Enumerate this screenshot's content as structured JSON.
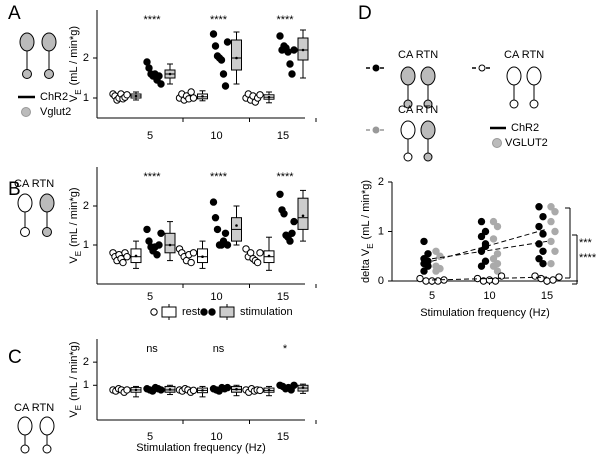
{
  "chart_data": [
    {
      "type": "box",
      "panel": "A",
      "categories": [
        "5",
        "10",
        "15"
      ],
      "ylim": [
        0.5,
        3.2
      ],
      "yticks": [
        1,
        2
      ],
      "y_label": {
        "main": "V",
        "sub": "E",
        "unit": "(mL / min*g)"
      },
      "significance": [
        "****",
        "****",
        "****"
      ],
      "schematic_labels": [
        "ChR2",
        "Vglut2"
      ],
      "series": [
        {
          "color": "#ffffff",
          "box_color": "#ffffff",
          "points": [
            [
              1.1,
              1.05,
              0.95,
              1.0,
              1.1,
              0.98,
              1.02,
              1.08
            ],
            [
              1.0,
              1.1,
              0.95,
              1.05,
              0.98,
              1.15,
              1.0
            ],
            [
              1.0,
              1.1,
              0.95,
              1.05,
              0.9,
              1.0,
              1.08
            ]
          ],
          "box": [
            [
              0.95,
              1.0,
              1.05,
              1.1,
              1.15,
              1.05
            ],
            [
              0.93,
              0.98,
              1.03,
              1.1,
              1.18,
              1.04
            ],
            [
              0.88,
              0.97,
              1.02,
              1.08,
              1.15,
              1.02
            ]
          ]
        },
        {
          "color": "#000000",
          "box_color": "#cccccc",
          "points": [
            [
              1.9,
              1.75,
              1.6,
              1.55,
              1.6,
              1.45,
              1.55,
              1.35
            ],
            [
              2.6,
              2.3,
              2.05,
              2.0,
              1.95,
              1.6,
              1.3,
              2.4
            ],
            [
              2.55,
              2.2,
              2.3,
              2.25,
              2.15,
              1.85,
              1.6,
              2.2
            ]
          ],
          "box": [
            [
              1.35,
              1.5,
              1.6,
              1.7,
              1.85,
              1.6
            ],
            [
              1.35,
              1.7,
              2.0,
              2.45,
              2.65,
              2.0
            ],
            [
              1.5,
              1.95,
              2.2,
              2.5,
              2.7,
              2.2
            ]
          ]
        }
      ]
    },
    {
      "type": "box",
      "panel": "B",
      "categories": [
        "5",
        "10",
        "15"
      ],
      "ylim": [
        0,
        3
      ],
      "yticks": [
        1,
        2
      ],
      "y_label": {
        "main": "V",
        "sub": "E",
        "unit": "(mL / min*g)"
      },
      "significance": [
        "****",
        "****",
        "****"
      ],
      "schematic_labels": [
        "CA RTN"
      ],
      "series": [
        {
          "name": "rest",
          "color": "#ffffff",
          "box_color": "#ffffff",
          "points": [
            [
              0.8,
              0.7,
              0.6,
              0.75,
              0.65,
              0.55,
              0.8,
              0.7
            ],
            [
              0.9,
              0.8,
              0.7,
              0.6,
              0.75,
              0.55,
              0.8
            ],
            [
              0.9,
              0.7,
              0.8,
              0.65,
              0.6,
              0.55,
              0.8
            ]
          ],
          "box": [
            [
              0.4,
              0.55,
              0.7,
              0.9,
              1.1,
              0.72
            ],
            [
              0.4,
              0.55,
              0.7,
              0.9,
              1.1,
              0.7
            ],
            [
              0.35,
              0.55,
              0.7,
              0.85,
              1.2,
              0.72
            ]
          ]
        },
        {
          "name": "stimulation",
          "color": "#000000",
          "box_color": "#cccccc",
          "points": [
            [
              1.4,
              1.1,
              0.95,
              0.85,
              0.95,
              0.75,
              1.0,
              1.3
            ],
            [
              2.1,
              1.7,
              1.4,
              1.0,
              1.0,
              1.1,
              1.3,
              1.0
            ],
            [
              2.3,
              1.9,
              1.8,
              1.25,
              1.2,
              1.1,
              1.3,
              1.6
            ]
          ],
          "box": [
            [
              0.6,
              0.8,
              1.0,
              1.3,
              1.6,
              1.0
            ],
            [
              1.0,
              1.1,
              1.4,
              1.7,
              2.0,
              1.5
            ],
            [
              1.1,
              1.4,
              1.7,
              2.2,
              2.4,
              1.75
            ]
          ]
        }
      ]
    },
    {
      "type": "box",
      "panel": "C",
      "categories": [
        "5",
        "10",
        "15"
      ],
      "ylim": [
        -0.5,
        3
      ],
      "yticks": [
        1,
        2
      ],
      "y_label": {
        "main": "V",
        "sub": "E",
        "unit": "(mL / min*g)"
      },
      "x_label": "Stimulation frequency (Hz)",
      "significance": [
        "ns",
        "ns",
        "*"
      ],
      "schematic_labels": [
        "CA RTN"
      ],
      "series": [
        {
          "color": "#ffffff",
          "box_color": "#ffffff",
          "points": [
            [
              0.8,
              0.75,
              0.85,
              0.8,
              0.7,
              0.8
            ],
            [
              0.8,
              0.75,
              0.85,
              0.8,
              0.7,
              0.78
            ],
            [
              0.8,
              0.7,
              0.85,
              0.75,
              0.8,
              0.78
            ]
          ],
          "box": [
            [
              0.5,
              0.7,
              0.8,
              0.9,
              0.95,
              0.8
            ],
            [
              0.5,
              0.68,
              0.78,
              0.88,
              0.95,
              0.78
            ],
            [
              0.55,
              0.7,
              0.78,
              0.88,
              0.95,
              0.79
            ]
          ]
        },
        {
          "color": "#000000",
          "box_color": "#cccccc",
          "points": [
            [
              0.85,
              0.8,
              0.75,
              0.9,
              0.85,
              0.8
            ],
            [
              0.85,
              0.8,
              0.75,
              0.9,
              0.85,
              0.9
            ],
            [
              1.0,
              0.95,
              0.85,
              0.9,
              0.8,
              1.0
            ]
          ],
          "box": [
            [
              0.6,
              0.7,
              0.8,
              0.95,
              1.0,
              0.82
            ],
            [
              0.55,
              0.7,
              0.82,
              0.95,
              1.0,
              0.83
            ],
            [
              0.65,
              0.75,
              0.88,
              1.0,
              1.05,
              0.9
            ]
          ]
        }
      ]
    },
    {
      "type": "scatter",
      "panel": "D",
      "categories": [
        "5",
        "10",
        "15"
      ],
      "ylim": [
        0,
        2
      ],
      "yticks": [
        0,
        1,
        2
      ],
      "y_label": {
        "main": "delta V",
        "sub": "E",
        "unit": "(mL / min*g)"
      },
      "x_label": "Stimulation frequency (Hz)",
      "significance": [
        "***",
        "****"
      ],
      "schematic_labels": [
        "CA RTN",
        "CA RTN",
        "CA RTN"
      ],
      "gene_labels": [
        "ChR2",
        "VGLUT2"
      ],
      "series": [
        {
          "color": "#000000",
          "edge": "#000000",
          "line_color": "#000000",
          "points": [
            [
              0.8,
              0.55,
              0.45,
              0.4,
              0.35,
              0.3,
              0.2
            ],
            [
              1.2,
              1.0,
              0.9,
              0.75,
              0.6,
              0.4,
              0.3,
              0.7
            ],
            [
              1.5,
              1.3,
              1.1,
              0.95,
              0.75,
              0.6,
              0.45,
              0.35
            ]
          ],
          "fit": [
            0.4,
            0.72,
            1.05
          ]
        },
        {
          "color": "#aaaaaa",
          "edge": "#aaaaaa",
          "line_color": "#000000",
          "points": [
            [
              0.6,
              0.5,
              0.3,
              0.25,
              0.2
            ],
            [
              1.2,
              1.1,
              0.85,
              0.55,
              0.45,
              0.35,
              0.3,
              0.2
            ],
            [
              1.5,
              1.4,
              1.2,
              1.0,
              0.8,
              0.6,
              0.35
            ]
          ],
          "fit": [
            0.45,
            0.62,
            0.8
          ]
        },
        {
          "color": "#ffffff",
          "edge": "#000000",
          "line_color": "#000000",
          "points": [
            [
              0.05,
              0,
              0,
              0,
              0.02
            ],
            [
              0.05,
              0,
              0.02,
              0,
              0.1
            ],
            [
              0.1,
              0.05,
              0,
              0.02,
              0.08
            ]
          ],
          "fit": [
            0.02,
            0.05,
            0.08
          ]
        }
      ]
    }
  ]
}
